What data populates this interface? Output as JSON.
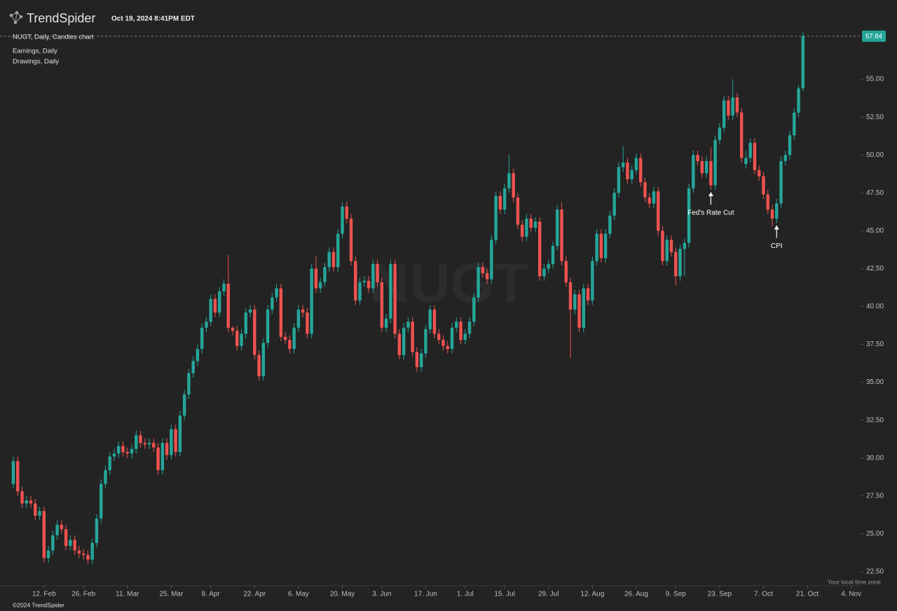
{
  "header": {
    "brand": "TrendSpider",
    "timestamp": "Oct 19, 2024 8:41PM EDT"
  },
  "overlays": [
    "Earnings, Daily",
    "Drawings, Daily"
  ],
  "footer": {
    "copyright": "©2024 TrendSpider",
    "timezone": "Your local time zone"
  },
  "chart_data": {
    "type": "candlestick",
    "title": "NUGT, Daily, Candles chart",
    "watermark": "NUGT",
    "up_color": "#26a69a",
    "down_color": "#ef5350",
    "ylim": [
      21.57,
      58.38
    ],
    "yticks": [
      {
        "value": 22.5,
        "label": "22.50"
      },
      {
        "value": 25,
        "label": "25.00"
      },
      {
        "value": 27.5,
        "label": "27.50"
      },
      {
        "value": 30,
        "label": "30.00"
      },
      {
        "value": 32.5,
        "label": "32.50"
      },
      {
        "value": 35,
        "label": "35.00"
      },
      {
        "value": 37.5,
        "label": "37.50"
      },
      {
        "value": 40,
        "label": "40.00"
      },
      {
        "value": 42.5,
        "label": "42.50"
      },
      {
        "value": 45,
        "label": "45.00"
      },
      {
        "value": 47.5,
        "label": "47.50"
      },
      {
        "value": 50,
        "label": "50.00"
      },
      {
        "value": 52.5,
        "label": "52.50"
      },
      {
        "value": 55,
        "label": "55.00"
      }
    ],
    "xticks": [
      "12. Feb",
      "26. Feb",
      "11. Mar",
      "25. Mar",
      "8. Apr",
      "22. Apr",
      "6. May",
      "20. May",
      "3. Jun",
      "17. Jun",
      "1. Jul",
      "15. Jul",
      "29. Jul",
      "12. Aug",
      "26. Aug",
      "9. Sep",
      "23. Sep",
      "7. Oct",
      "21. Oct",
      "4. Nov"
    ],
    "categories": [
      "1. Feb",
      "2. Feb",
      "5. Feb",
      "6. Feb",
      "7. Feb",
      "8. Feb",
      "9. Feb",
      "12. Feb",
      "13. Feb",
      "14. Feb",
      "15. Feb",
      "16. Feb",
      "20. Feb",
      "21. Feb",
      "22. Feb",
      "23. Feb",
      "26. Feb",
      "27. Feb",
      "28. Feb",
      "29. Feb",
      "1. Mar",
      "4. Mar",
      "5. Mar",
      "6. Mar",
      "7. Mar",
      "8. Mar",
      "11. Mar",
      "12. Mar",
      "13. Mar",
      "14. Mar",
      "15. Mar",
      "18. Mar",
      "19. Mar",
      "20. Mar",
      "21. Mar",
      "22. Mar",
      "25. Mar",
      "26. Mar",
      "27. Mar",
      "28. Mar",
      "1. Apr",
      "2. Apr",
      "3. Apr",
      "4. Apr",
      "5. Apr",
      "8. Apr",
      "9. Apr",
      "10. Apr",
      "11. Apr",
      "12. Apr",
      "15. Apr",
      "16. Apr",
      "17. Apr",
      "18. Apr",
      "19. Apr",
      "22. Apr",
      "23. Apr",
      "24. Apr",
      "25. Apr",
      "26. Apr",
      "29. Apr",
      "30. Apr",
      "1. May",
      "2. May",
      "3. May",
      "6. May",
      "7. May",
      "8. May",
      "9. May",
      "10. May",
      "13. May",
      "14. May",
      "15. May",
      "16. May",
      "17. May",
      "20. May",
      "21. May",
      "22. May",
      "23. May",
      "24. May",
      "28. May",
      "29. May",
      "30. May",
      "31. May",
      "3. Jun",
      "4. Jun",
      "5. Jun",
      "6. Jun",
      "7. Jun",
      "10. Jun",
      "11. Jun",
      "12. Jun",
      "13. Jun",
      "14. Jun",
      "17. Jun",
      "18. Jun",
      "20. Jun",
      "21. Jun",
      "24. Jun",
      "25. Jun",
      "26. Jun",
      "27. Jun",
      "28. Jun",
      "1. Jul",
      "2. Jul",
      "3. Jul",
      "5. Jul",
      "8. Jul",
      "9. Jul",
      "10. Jul",
      "11. Jul",
      "12. Jul",
      "15. Jul",
      "16. Jul",
      "17. Jul",
      "18. Jul",
      "19. Jul",
      "22. Jul",
      "23. Jul",
      "24. Jul",
      "25. Jul",
      "26. Jul",
      "29. Jul",
      "30. Jul",
      "31. Jul",
      "1. Aug",
      "2. Aug",
      "5. Aug",
      "6. Aug",
      "7. Aug",
      "8. Aug",
      "9. Aug",
      "12. Aug",
      "13. Aug",
      "14. Aug",
      "15. Aug",
      "16. Aug",
      "19. Aug",
      "20. Aug",
      "21. Aug",
      "22. Aug",
      "23. Aug",
      "26. Aug",
      "27. Aug",
      "28. Aug",
      "29. Aug",
      "30. Aug",
      "3. Sep",
      "4. Sep",
      "5. Sep",
      "6. Sep",
      "9. Sep",
      "10. Sep",
      "11. Sep",
      "12. Sep",
      "13. Sep",
      "16. Sep",
      "17. Sep",
      "18. Sep",
      "19. Sep",
      "20. Sep",
      "23. Sep",
      "24. Sep",
      "25. Sep",
      "26. Sep",
      "27. Sep",
      "30. Sep",
      "1. Oct",
      "2. Oct",
      "3. Oct",
      "4. Oct",
      "7. Oct",
      "8. Oct",
      "9. Oct",
      "10. Oct",
      "11. Oct",
      "14. Oct",
      "15. Oct",
      "16. Oct",
      "17. Oct",
      "18. Oct",
      "21. Oct",
      "22. Oct",
      "23. Oct",
      "24. Oct",
      "25. Oct",
      "28. Oct",
      "29. Oct",
      "30. Oct",
      "31. Oct",
      "1. Nov",
      "4. Nov",
      "5. Nov",
      "6. Nov"
    ],
    "ohlc": [
      [
        28.3,
        30.1,
        28.0,
        29.8
      ],
      [
        29.8,
        30.1,
        27.5,
        27.8
      ],
      [
        27.8,
        28.1,
        26.7,
        27.0
      ],
      [
        27.0,
        27.5,
        26.7,
        27.2
      ],
      [
        27.2,
        27.5,
        26.7,
        27.0
      ],
      [
        27.0,
        27.3,
        25.9,
        26.2
      ],
      [
        26.2,
        26.8,
        25.9,
        26.5
      ],
      [
        26.5,
        26.8,
        23.1,
        23.4
      ],
      [
        23.4,
        24.2,
        23.1,
        23.9
      ],
      [
        23.9,
        25.2,
        23.6,
        24.9
      ],
      [
        24.9,
        25.9,
        24.6,
        25.6
      ],
      [
        25.6,
        25.9,
        25.0,
        25.3
      ],
      [
        25.3,
        25.6,
        23.9,
        24.2
      ],
      [
        24.2,
        24.9,
        23.9,
        24.6
      ],
      [
        24.6,
        24.9,
        23.6,
        23.9
      ],
      [
        23.9,
        24.2,
        23.4,
        23.7
      ],
      [
        23.7,
        24.0,
        23.3,
        23.6
      ],
      [
        23.6,
        23.9,
        23.0,
        23.3
      ],
      [
        23.3,
        24.7,
        23.0,
        24.4
      ],
      [
        24.4,
        26.3,
        24.1,
        26.0
      ],
      [
        26.0,
        28.6,
        25.7,
        28.3
      ],
      [
        28.3,
        29.5,
        28.0,
        29.2
      ],
      [
        29.2,
        30.4,
        28.9,
        30.1
      ],
      [
        30.1,
        30.6,
        29.8,
        30.3
      ],
      [
        30.3,
        31.1,
        30.0,
        30.8
      ],
      [
        30.8,
        31.1,
        30.1,
        30.4
      ],
      [
        30.4,
        30.7,
        30.0,
        30.3
      ],
      [
        30.3,
        30.9,
        30.0,
        30.6
      ],
      [
        30.6,
        31.8,
        30.3,
        31.5
      ],
      [
        31.5,
        31.8,
        30.7,
        31.0
      ],
      [
        31.0,
        31.3,
        30.6,
        30.9
      ],
      [
        30.9,
        31.3,
        30.6,
        31.0
      ],
      [
        31.0,
        31.3,
        30.4,
        30.7
      ],
      [
        30.7,
        31.0,
        28.9,
        29.2
      ],
      [
        29.2,
        31.3,
        28.9,
        31.0
      ],
      [
        31.0,
        31.3,
        29.9,
        30.2
      ],
      [
        30.2,
        32.2,
        29.9,
        31.9
      ],
      [
        31.9,
        32.2,
        30.1,
        30.4
      ],
      [
        30.4,
        33.1,
        30.1,
        32.8
      ],
      [
        32.8,
        34.5,
        32.5,
        34.2
      ],
      [
        34.2,
        35.9,
        33.9,
        35.6
      ],
      [
        35.6,
        36.7,
        35.3,
        36.4
      ],
      [
        36.4,
        37.5,
        36.1,
        37.2
      ],
      [
        37.2,
        38.9,
        36.9,
        38.6
      ],
      [
        38.6,
        39.3,
        38.3,
        39.0
      ],
      [
        39.0,
        40.8,
        38.7,
        40.5
      ],
      [
        40.5,
        40.8,
        39.3,
        39.6
      ],
      [
        39.6,
        41.3,
        39.3,
        41.0
      ],
      [
        41.0,
        41.8,
        40.7,
        41.5
      ],
      [
        41.5,
        43.4,
        38.3,
        38.6
      ],
      [
        38.6,
        38.7,
        38.1,
        38.4
      ],
      [
        38.4,
        38.7,
        37.1,
        37.4
      ],
      [
        37.4,
        38.5,
        37.1,
        38.2
      ],
      [
        38.2,
        39.9,
        37.9,
        39.6
      ],
      [
        39.6,
        40.1,
        39.3,
        39.8
      ],
      [
        39.8,
        40.1,
        36.5,
        36.8
      ],
      [
        36.8,
        37.1,
        35.1,
        35.4
      ],
      [
        35.4,
        37.9,
        35.1,
        37.6
      ],
      [
        37.6,
        40.1,
        37.3,
        39.8
      ],
      [
        39.8,
        40.9,
        39.5,
        40.6
      ],
      [
        40.6,
        41.5,
        40.3,
        41.2
      ],
      [
        41.2,
        41.5,
        37.7,
        38.0
      ],
      [
        38.0,
        38.3,
        37.5,
        37.8
      ],
      [
        37.8,
        38.1,
        36.9,
        37.2
      ],
      [
        37.2,
        38.9,
        36.9,
        38.6
      ],
      [
        38.6,
        40.1,
        38.3,
        39.8
      ],
      [
        39.8,
        40.1,
        39.3,
        39.6
      ],
      [
        39.6,
        39.9,
        37.9,
        38.2
      ],
      [
        38.2,
        42.8,
        37.9,
        42.5
      ],
      [
        42.5,
        43.3,
        40.9,
        41.2
      ],
      [
        41.2,
        41.9,
        40.9,
        41.6
      ],
      [
        41.6,
        42.9,
        41.3,
        42.6
      ],
      [
        42.6,
        43.9,
        42.3,
        43.6
      ],
      [
        43.6,
        43.9,
        42.3,
        42.6
      ],
      [
        42.6,
        45.1,
        42.3,
        44.8
      ],
      [
        44.8,
        46.9,
        44.5,
        46.6
      ],
      [
        46.6,
        46.9,
        45.5,
        45.8
      ],
      [
        45.8,
        46.1,
        42.7,
        43.0
      ],
      [
        43.0,
        43.3,
        40.1,
        40.4
      ],
      [
        40.4,
        41.9,
        40.1,
        41.6
      ],
      [
        41.6,
        42.0,
        41.3,
        41.7
      ],
      [
        41.7,
        42.0,
        40.9,
        41.2
      ],
      [
        41.2,
        43.1,
        40.9,
        42.8
      ],
      [
        42.8,
        43.1,
        41.3,
        41.6
      ],
      [
        41.6,
        41.9,
        38.3,
        38.6
      ],
      [
        38.6,
        39.5,
        38.3,
        39.2
      ],
      [
        39.2,
        43.1,
        38.9,
        42.8
      ],
      [
        42.8,
        43.1,
        37.9,
        38.2
      ],
      [
        38.2,
        38.5,
        36.5,
        36.8
      ],
      [
        36.8,
        38.9,
        36.5,
        38.6
      ],
      [
        38.6,
        39.3,
        38.3,
        39.0
      ],
      [
        39.0,
        39.3,
        36.7,
        37.0
      ],
      [
        37.0,
        37.3,
        35.7,
        36.0
      ],
      [
        36.0,
        37.2,
        35.7,
        36.9
      ],
      [
        36.9,
        38.8,
        36.6,
        38.5
      ],
      [
        38.5,
        40.1,
        38.2,
        39.8
      ],
      [
        39.8,
        40.1,
        37.9,
        38.2
      ],
      [
        38.2,
        38.5,
        37.5,
        37.8
      ],
      [
        37.8,
        38.1,
        37.1,
        37.4
      ],
      [
        37.4,
        37.7,
        36.9,
        37.2
      ],
      [
        37.2,
        38.9,
        36.9,
        38.6
      ],
      [
        38.6,
        39.3,
        38.3,
        39.0
      ],
      [
        39.0,
        39.3,
        37.5,
        37.8
      ],
      [
        37.8,
        38.5,
        37.5,
        38.2
      ],
      [
        38.2,
        39.3,
        37.9,
        39.0
      ],
      [
        39.0,
        40.9,
        38.7,
        40.6
      ],
      [
        40.6,
        42.9,
        40.3,
        42.6
      ],
      [
        42.6,
        42.9,
        41.9,
        42.2
      ],
      [
        42.2,
        42.5,
        41.5,
        41.8
      ],
      [
        41.8,
        44.7,
        41.5,
        44.4
      ],
      [
        44.4,
        47.6,
        44.1,
        47.3
      ],
      [
        47.3,
        47.6,
        46.1,
        46.4
      ],
      [
        46.4,
        48.1,
        46.1,
        47.8
      ],
      [
        47.8,
        50.0,
        47.5,
        48.8
      ],
      [
        48.8,
        49.1,
        46.9,
        47.2
      ],
      [
        47.2,
        47.5,
        45.1,
        45.4
      ],
      [
        45.4,
        45.7,
        44.3,
        44.6
      ],
      [
        44.6,
        46.1,
        44.3,
        45.8
      ],
      [
        45.8,
        46.1,
        44.9,
        45.2
      ],
      [
        45.2,
        45.9,
        44.9,
        45.6
      ],
      [
        45.6,
        45.9,
        41.7,
        42.0
      ],
      [
        42.0,
        42.8,
        41.7,
        42.5
      ],
      [
        42.5,
        43.1,
        42.2,
        42.8
      ],
      [
        42.8,
        44.3,
        42.5,
        44.0
      ],
      [
        44.0,
        46.7,
        43.7,
        46.4
      ],
      [
        46.4,
        46.9,
        42.7,
        43.0
      ],
      [
        43.0,
        43.3,
        41.3,
        41.6
      ],
      [
        41.6,
        41.9,
        36.6,
        39.8
      ],
      [
        39.8,
        41.1,
        39.5,
        40.8
      ],
      [
        40.8,
        41.1,
        38.3,
        38.6
      ],
      [
        38.6,
        41.5,
        38.3,
        41.2
      ],
      [
        41.2,
        41.5,
        40.1,
        40.4
      ],
      [
        40.4,
        43.3,
        40.1,
        43.0
      ],
      [
        43.0,
        45.1,
        42.7,
        44.8
      ],
      [
        44.8,
        45.1,
        42.9,
        43.2
      ],
      [
        43.2,
        45.1,
        42.9,
        44.8
      ],
      [
        44.8,
        46.3,
        44.5,
        46.0
      ],
      [
        46.0,
        47.8,
        45.7,
        47.5
      ],
      [
        47.5,
        49.5,
        47.2,
        49.2
      ],
      [
        49.2,
        50.6,
        48.9,
        49.5
      ],
      [
        49.5,
        49.8,
        48.1,
        48.4
      ],
      [
        48.4,
        49.3,
        48.1,
        49.0
      ],
      [
        49.0,
        50.1,
        48.7,
        49.8
      ],
      [
        49.8,
        50.1,
        47.9,
        48.2
      ],
      [
        48.2,
        48.5,
        46.9,
        47.2
      ],
      [
        47.2,
        47.5,
        46.5,
        46.8
      ],
      [
        46.8,
        47.9,
        46.5,
        47.6
      ],
      [
        47.6,
        47.9,
        44.7,
        45.0
      ],
      [
        45.0,
        45.3,
        42.7,
        43.0
      ],
      [
        43.0,
        44.7,
        42.7,
        44.4
      ],
      [
        44.4,
        44.7,
        43.3,
        43.6
      ],
      [
        43.6,
        43.9,
        41.4,
        42.0
      ],
      [
        42.0,
        44.1,
        41.7,
        43.8
      ],
      [
        43.8,
        44.5,
        42.0,
        44.2
      ],
      [
        44.2,
        48.1,
        43.9,
        47.8
      ],
      [
        47.8,
        50.3,
        47.5,
        50.0
      ],
      [
        50.0,
        50.3,
        49.3,
        49.6
      ],
      [
        49.6,
        49.9,
        48.5,
        48.8
      ],
      [
        48.8,
        49.9,
        48.5,
        49.6
      ],
      [
        49.6,
        50.5,
        47.7,
        48.0
      ],
      [
        48.0,
        51.3,
        47.7,
        51.0
      ],
      [
        51.0,
        52.1,
        50.7,
        51.8
      ],
      [
        51.8,
        53.9,
        51.5,
        53.6
      ],
      [
        53.6,
        53.9,
        52.3,
        52.6
      ],
      [
        52.6,
        55.0,
        52.3,
        53.8
      ],
      [
        53.8,
        54.1,
        52.5,
        52.8
      ],
      [
        52.8,
        53.1,
        49.5,
        49.8
      ],
      [
        49.4,
        50.3,
        49.1,
        49.8
      ],
      [
        49.8,
        51.1,
        49.5,
        50.8
      ],
      [
        50.8,
        51.1,
        48.7,
        49.0
      ],
      [
        49.0,
        49.3,
        48.3,
        48.6
      ],
      [
        48.6,
        48.9,
        47.1,
        47.4
      ],
      [
        47.4,
        47.7,
        46.1,
        46.4
      ],
      [
        46.4,
        46.7,
        45.3,
        45.8
      ],
      [
        45.8,
        47.1,
        45.5,
        46.8
      ],
      [
        46.8,
        49.9,
        46.5,
        49.6
      ],
      [
        49.6,
        50.3,
        49.3,
        50.0
      ],
      [
        50.0,
        51.6,
        49.7,
        51.3
      ],
      [
        51.3,
        53.1,
        51.0,
        52.8
      ],
      [
        52.8,
        54.6,
        52.5,
        54.4
      ],
      [
        54.4,
        58.1,
        54.2,
        57.84
      ],
      null,
      null,
      null,
      null,
      null,
      null,
      null,
      null,
      null,
      null,
      null,
      null,
      null
    ],
    "annotations": [
      {
        "text": "Fed's Rate Cut",
        "category": "19. Sep"
      },
      {
        "text": "CPI",
        "category": "10. Oct"
      }
    ]
  }
}
